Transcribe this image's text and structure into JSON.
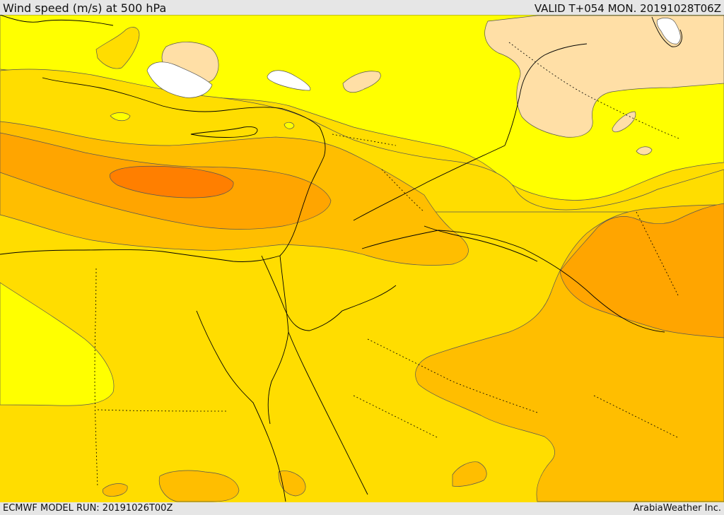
{
  "header": {
    "title": "Wind speed (m/s) at 500 hPa",
    "valid": "VALID T+054 MON. 20191028T06Z"
  },
  "footer": {
    "model_run": "ECMWF MODEL RUN: 20191026T00Z",
    "credit": "ArabiaWeather Inc."
  },
  "map": {
    "field": "wind speed at 500 hPa",
    "colors": {
      "white": "#ffffff",
      "peach": "#ffdfa6",
      "yellow": "#ffff00",
      "gold": "#ffdd00",
      "amber": "#ffbe00",
      "orange": "#ffa500",
      "dark_orange": "#ff9900",
      "deep_orange": "#ff7f00",
      "coast_lines": "#000000",
      "contour_lines": "#444444"
    }
  }
}
